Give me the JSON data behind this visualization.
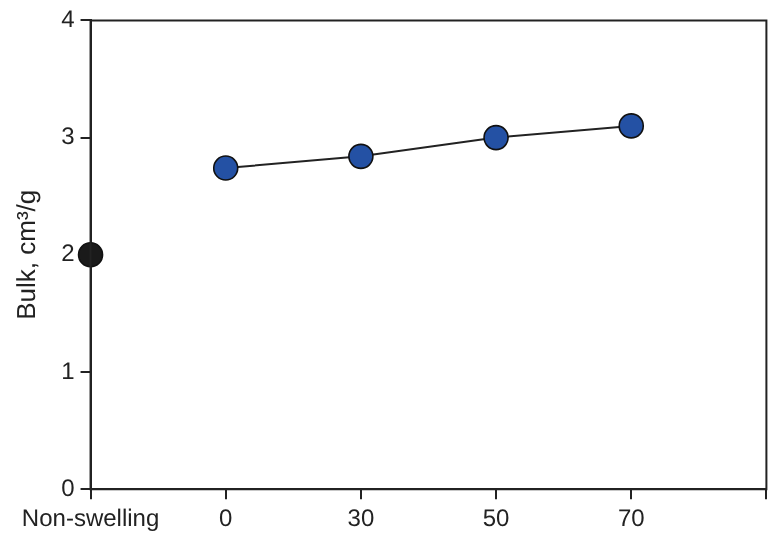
{
  "chart_data": {
    "type": "line",
    "ylabel": "Bulk, cm³/g",
    "categories": [
      "Non-swelling",
      "0",
      "30",
      "50",
      "70",
      null
    ],
    "series": [
      {
        "type": "scatter",
        "color": "#1a1a1a",
        "values": [
          2.0,
          null,
          null,
          null,
          null,
          null
        ]
      },
      {
        "type": "line",
        "color": "#2451a4",
        "values": [
          null,
          2.74,
          2.84,
          3.0,
          3.1,
          null
        ]
      }
    ],
    "ylim": [
      0,
      4
    ],
    "yticks": [
      0,
      1,
      2,
      3,
      4
    ],
    "grid": false,
    "legend": false,
    "marker": "circle",
    "line_style": "solid"
  }
}
